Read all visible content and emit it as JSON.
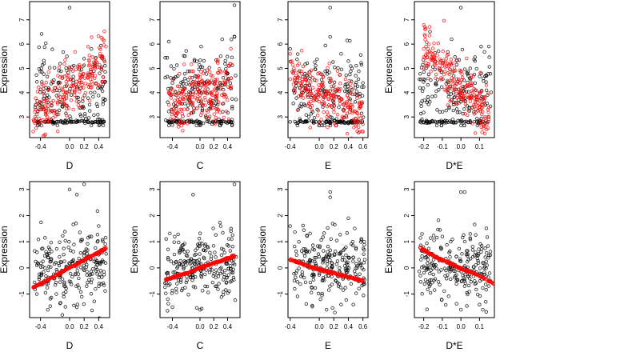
{
  "colors": {
    "observed": "#000000",
    "fitted": "#ff0000",
    "frame": "#000000",
    "background": "#ffffff"
  },
  "chart_data": [
    {
      "type": "scatter",
      "row": 1,
      "col": 1,
      "xlabel": "D",
      "ylabel": "Expression",
      "xlim": [
        -0.55,
        0.55
      ],
      "ylim": [
        2.15,
        7.75
      ],
      "xticks": [
        -0.4,
        0.0,
        0.2,
        0.4
      ],
      "xtick_labels": [
        "-0.4",
        "0.0",
        "0.2",
        "0.4"
      ],
      "yticks": [
        3,
        4,
        5,
        6,
        7
      ],
      "ytick_labels": [
        "3",
        "4",
        "5",
        "6",
        "7"
      ],
      "series": [
        {
          "role": "observed",
          "color": "#000000",
          "n_points": 240,
          "points": [
            [
              -0.45,
              2.8
            ],
            [
              -0.42,
              2.8
            ],
            [
              -0.35,
              2.8
            ],
            [
              -0.3,
              2.8
            ],
            [
              -0.25,
              2.8
            ],
            [
              -0.15,
              2.8
            ],
            [
              -0.1,
              2.8
            ],
            [
              0.0,
              2.8
            ],
            [
              0.1,
              2.8
            ],
            [
              0.25,
              2.8
            ],
            [
              0.35,
              2.8
            ],
            [
              0.4,
              2.8
            ],
            [
              0.0,
              7.5
            ],
            [
              -0.2,
              4.2
            ],
            [
              -0.1,
              4.6
            ],
            [
              0.0,
              5.0
            ],
            [
              0.05,
              4.4
            ],
            [
              0.2,
              5.4
            ],
            [
              0.3,
              5.8
            ],
            [
              0.35,
              5.2
            ],
            [
              0.45,
              5.5
            ],
            [
              -0.3,
              3.6
            ],
            [
              -0.4,
              3.3
            ],
            [
              0.1,
              3.8
            ]
          ]
        },
        {
          "role": "fitted",
          "color": "#ff0000",
          "n_points": 240,
          "points": [
            [
              -0.5,
              2.4
            ],
            [
              -0.45,
              3.1
            ],
            [
              -0.35,
              3.3
            ],
            [
              -0.25,
              3.6
            ],
            [
              -0.15,
              3.9
            ],
            [
              -0.05,
              4.0
            ],
            [
              0.05,
              4.3
            ],
            [
              0.15,
              4.6
            ],
            [
              0.25,
              4.8
            ],
            [
              0.35,
              5.0
            ],
            [
              0.45,
              5.4
            ],
            [
              0.5,
              5.9
            ]
          ]
        }
      ]
    },
    {
      "type": "scatter",
      "row": 1,
      "col": 2,
      "xlabel": "C",
      "ylabel": "Expression",
      "xlim": [
        -0.58,
        0.58
      ],
      "ylim": [
        2.15,
        7.75
      ],
      "xticks": [
        -0.4,
        0.0,
        0.2,
        0.4
      ],
      "xtick_labels": [
        "-0.4",
        "0.0",
        "0.2",
        "0.4"
      ],
      "yticks": [
        3,
        4,
        5,
        6,
        7
      ],
      "ytick_labels": [
        "3",
        "4",
        "5",
        "6",
        "7"
      ],
      "series": [
        {
          "role": "observed",
          "color": "#000000",
          "n_points": 240,
          "points": [
            [
              -0.45,
              2.8
            ],
            [
              -0.35,
              2.8
            ],
            [
              -0.2,
              2.8
            ],
            [
              0.0,
              2.8
            ],
            [
              0.2,
              2.8
            ],
            [
              0.3,
              2.8
            ],
            [
              0.45,
              2.8
            ],
            [
              0.5,
              7.6
            ],
            [
              0.5,
              6.3
            ],
            [
              -0.4,
              4.4
            ],
            [
              0.0,
              4.2
            ],
            [
              0.3,
              5.5
            ],
            [
              0.4,
              4.8
            ]
          ]
        },
        {
          "role": "fitted",
          "color": "#ff0000",
          "n_points": 240,
          "points": [
            [
              -0.45,
              3.5
            ],
            [
              -0.3,
              3.6
            ],
            [
              -0.15,
              3.8
            ],
            [
              0.0,
              3.9
            ],
            [
              0.15,
              4.0
            ],
            [
              0.3,
              4.2
            ],
            [
              0.45,
              4.6
            ]
          ]
        }
      ]
    },
    {
      "type": "scatter",
      "row": 1,
      "col": 3,
      "xlabel": "E",
      "ylabel": "Expression",
      "xlim": [
        -0.43,
        0.67
      ],
      "ylim": [
        2.15,
        7.75
      ],
      "xticks": [
        -0.4,
        0.0,
        0.2,
        0.4,
        0.6
      ],
      "xtick_labels": [
        "-0.4",
        "0.0",
        "0.2",
        "0.4",
        "0.6"
      ],
      "yticks": [
        3,
        4,
        5,
        6,
        7
      ],
      "ytick_labels": [
        "3",
        "4",
        "5",
        "6",
        "7"
      ],
      "series": [
        {
          "role": "observed",
          "color": "#000000",
          "n_points": 240,
          "points": [
            [
              -0.4,
              2.8
            ],
            [
              -0.2,
              2.8
            ],
            [
              0.0,
              2.8
            ],
            [
              0.1,
              2.8
            ],
            [
              0.15,
              2.8
            ],
            [
              0.3,
              2.8
            ],
            [
              0.4,
              2.8
            ],
            [
              0.15,
              7.5
            ],
            [
              0.15,
              6.3
            ],
            [
              0.3,
              5.6
            ],
            [
              0.4,
              5.3
            ],
            [
              -0.4,
              5.8
            ],
            [
              0.6,
              4.4
            ]
          ]
        },
        {
          "role": "fitted",
          "color": "#ff0000",
          "n_points": 240,
          "points": [
            [
              -0.4,
              5.6
            ],
            [
              -0.35,
              5.0
            ],
            [
              -0.3,
              4.5
            ],
            [
              -0.2,
              4.2
            ],
            [
              0.0,
              4.0
            ],
            [
              0.15,
              3.9
            ],
            [
              0.3,
              3.7
            ],
            [
              0.45,
              3.5
            ],
            [
              0.6,
              2.7
            ]
          ]
        }
      ]
    },
    {
      "type": "scatter",
      "row": 1,
      "col": 4,
      "xlabel": "D*E",
      "ylabel": "Expression",
      "xlim": [
        -0.25,
        0.18
      ],
      "ylim": [
        2.15,
        7.75
      ],
      "xticks": [
        -0.2,
        -0.1,
        0.0,
        0.1
      ],
      "xtick_labels": [
        "-0.2",
        "-0.1",
        "0.0",
        "0.1"
      ],
      "yticks": [
        3,
        4,
        5,
        6,
        7
      ],
      "ytick_labels": [
        "3",
        "4",
        "5",
        "6",
        "7"
      ],
      "series": [
        {
          "role": "observed",
          "color": "#000000",
          "n_points": 240,
          "points": [
            [
              -0.22,
              2.8
            ],
            [
              -0.15,
              2.8
            ],
            [
              -0.1,
              2.8
            ],
            [
              -0.05,
              2.8
            ],
            [
              0.0,
              2.8
            ],
            [
              0.05,
              2.8
            ],
            [
              0.1,
              2.8
            ],
            [
              0.0,
              7.5
            ],
            [
              -0.05,
              6.2
            ],
            [
              0.05,
              5.0
            ],
            [
              0.1,
              4.0
            ],
            [
              0.15,
              3.0
            ],
            [
              -0.22,
              4.2
            ]
          ]
        },
        {
          "role": "fitted",
          "color": "#ff0000",
          "n_points": 240,
          "points": [
            [
              -0.2,
              5.8
            ],
            [
              -0.15,
              5.5
            ],
            [
              -0.1,
              5.1
            ],
            [
              -0.05,
              4.6
            ],
            [
              0.0,
              4.2
            ],
            [
              0.05,
              3.8
            ],
            [
              0.1,
              3.4
            ],
            [
              0.15,
              2.9
            ]
          ]
        }
      ]
    },
    {
      "type": "scatter",
      "row": 2,
      "col": 1,
      "xlabel": "D",
      "ylabel": "Expression",
      "xlim": [
        -0.55,
        0.55
      ],
      "ylim": [
        -1.9,
        3.3
      ],
      "xticks": [
        -0.4,
        0.0,
        0.2,
        0.4
      ],
      "xtick_labels": [
        "-0.4",
        "0.0",
        "0.2",
        "0.4"
      ],
      "yticks": [
        -1,
        0,
        1,
        2,
        3
      ],
      "ytick_labels": [
        "-1",
        "0",
        "1",
        "2",
        "3"
      ],
      "series": [
        {
          "role": "observed",
          "color": "#000000",
          "n_points": 240,
          "points": [
            [
              0.0,
              3.0
            ],
            [
              0.1,
              2.8
            ],
            [
              0.2,
              3.2
            ],
            [
              -0.3,
              -1.6
            ],
            [
              -0.1,
              -1.8
            ],
            [
              0.1,
              -1.5
            ],
            [
              0.4,
              1.6
            ],
            [
              -0.45,
              -1.0
            ],
            [
              0.3,
              1.2
            ]
          ]
        },
        {
          "role": "fitted",
          "color": "#ff0000",
          "n_points": 240,
          "points": [
            [
              -0.5,
              -0.75
            ],
            [
              -0.4,
              -0.6
            ],
            [
              -0.3,
              -0.45
            ],
            [
              -0.2,
              -0.3
            ],
            [
              -0.1,
              -0.15
            ],
            [
              0.0,
              0.0
            ],
            [
              0.1,
              0.15
            ],
            [
              0.2,
              0.3
            ],
            [
              0.3,
              0.45
            ],
            [
              0.4,
              0.6
            ],
            [
              0.5,
              0.75
            ]
          ]
        }
      ]
    },
    {
      "type": "scatter",
      "row": 2,
      "col": 2,
      "xlabel": "C",
      "ylabel": "Expression",
      "xlim": [
        -0.58,
        0.58
      ],
      "ylim": [
        -1.9,
        3.3
      ],
      "xticks": [
        -0.4,
        0.0,
        0.2,
        0.4
      ],
      "xtick_labels": [
        "-0.4",
        "0.0",
        "0.2",
        "0.4"
      ],
      "yticks": [
        -1,
        0,
        1,
        2,
        3
      ],
      "ytick_labels": [
        "-1",
        "0",
        "1",
        "2",
        "3"
      ],
      "series": [
        {
          "role": "observed",
          "color": "#000000",
          "n_points": 240,
          "points": [
            [
              -0.1,
              2.8
            ],
            [
              0.5,
              3.2
            ],
            [
              -0.4,
              -1.5
            ],
            [
              0.0,
              -1.6
            ],
            [
              0.3,
              1.6
            ],
            [
              0.45,
              1.5
            ]
          ]
        },
        {
          "role": "fitted",
          "color": "#ff0000",
          "n_points": 240,
          "points": [
            [
              -0.5,
              -0.45
            ],
            [
              -0.4,
              -0.37
            ],
            [
              -0.3,
              -0.28
            ],
            [
              -0.2,
              -0.2
            ],
            [
              -0.1,
              -0.1
            ],
            [
              0.0,
              0.0
            ],
            [
              0.1,
              0.09
            ],
            [
              0.2,
              0.18
            ],
            [
              0.3,
              0.27
            ],
            [
              0.4,
              0.36
            ],
            [
              0.5,
              0.45
            ]
          ]
        }
      ]
    },
    {
      "type": "scatter",
      "row": 2,
      "col": 3,
      "xlabel": "E",
      "ylabel": "Expression",
      "xlim": [
        -0.43,
        0.67
      ],
      "ylim": [
        -1.9,
        3.3
      ],
      "xticks": [
        -0.4,
        0.0,
        0.2,
        0.4,
        0.6
      ],
      "xtick_labels": [
        "-0.4",
        "0.0",
        "0.2",
        "0.4",
        "0.6"
      ],
      "yticks": [
        -1,
        0,
        1,
        2,
        3
      ],
      "ytick_labels": [
        "-1",
        "0",
        "1",
        "2",
        "3"
      ],
      "series": [
        {
          "role": "observed",
          "color": "#000000",
          "n_points": 240,
          "points": [
            [
              0.15,
              2.9
            ],
            [
              0.15,
              2.7
            ],
            [
              -0.4,
              1.6
            ],
            [
              0.4,
              1.9
            ],
            [
              0.1,
              -1.6
            ],
            [
              0.3,
              -1.4
            ]
          ]
        },
        {
          "role": "fitted",
          "color": "#ff0000",
          "n_points": 240,
          "points": [
            [
              -0.4,
              0.32
            ],
            [
              -0.3,
              0.22
            ],
            [
              -0.2,
              0.12
            ],
            [
              -0.1,
              0.02
            ],
            [
              0.0,
              -0.06
            ],
            [
              0.1,
              -0.13
            ],
            [
              0.2,
              -0.2
            ],
            [
              0.3,
              -0.27
            ],
            [
              0.4,
              -0.35
            ],
            [
              0.5,
              -0.42
            ],
            [
              0.6,
              -0.5
            ]
          ]
        }
      ]
    },
    {
      "type": "scatter",
      "row": 2,
      "col": 4,
      "xlabel": "D*E",
      "ylabel": "Expression",
      "xlim": [
        -0.25,
        0.18
      ],
      "ylim": [
        -1.9,
        3.3
      ],
      "xticks": [
        -0.2,
        -0.1,
        0.0,
        0.1
      ],
      "xtick_labels": [
        "-0.2",
        "-0.1",
        "0.0",
        "0.1"
      ],
      "yticks": [
        -1,
        0,
        1,
        2,
        3
      ],
      "ytick_labels": [
        "-1",
        "0",
        "1",
        "2",
        "3"
      ],
      "series": [
        {
          "role": "observed",
          "color": "#000000",
          "n_points": 240,
          "points": [
            [
              0.0,
              2.9
            ],
            [
              0.02,
              2.9
            ],
            [
              -0.1,
              1.2
            ],
            [
              0.05,
              1.3
            ],
            [
              0.0,
              -1.6
            ],
            [
              0.1,
              -1.4
            ]
          ]
        },
        {
          "role": "fitted",
          "color": "#ff0000",
          "n_points": 240,
          "points": [
            [
              -0.22,
              0.78
            ],
            [
              -0.2,
              0.68
            ],
            [
              -0.15,
              0.47
            ],
            [
              -0.1,
              0.3
            ],
            [
              -0.05,
              0.15
            ],
            [
              0.0,
              -0.02
            ],
            [
              0.05,
              -0.16
            ],
            [
              0.1,
              -0.3
            ],
            [
              0.15,
              -0.5
            ],
            [
              0.18,
              -0.62
            ]
          ]
        }
      ]
    }
  ]
}
